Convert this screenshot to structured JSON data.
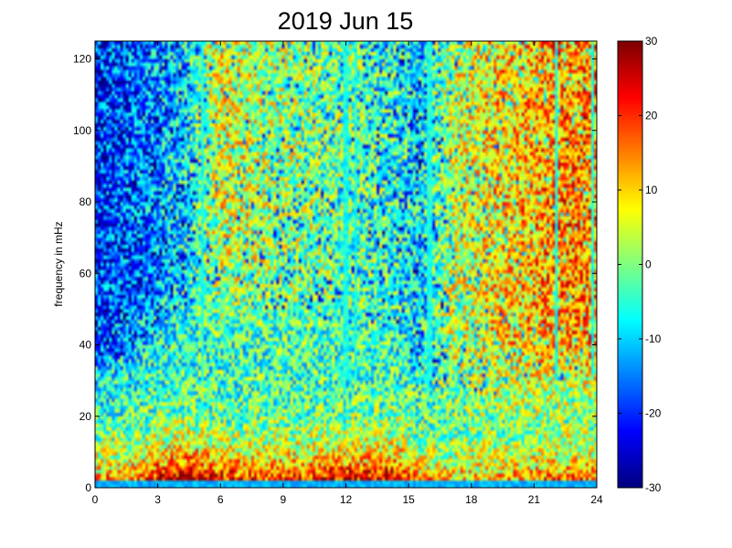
{
  "chart_data": {
    "type": "heatmap",
    "title": "2019 Jun 15",
    "xlabel": "",
    "ylabel": "frequency in mHz",
    "xlim": [
      0,
      24
    ],
    "ylim": [
      0,
      125
    ],
    "x_ticks": [
      "0",
      "3",
      "6",
      "9",
      "12",
      "15",
      "18",
      "21",
      "24"
    ],
    "y_ticks": [
      "0",
      "20",
      "40",
      "60",
      "80",
      "100",
      "120"
    ],
    "colorbar": {
      "range": [
        -30,
        30
      ],
      "ticks": [
        "30",
        "20",
        "10",
        "0",
        "-10",
        "-20",
        "-30"
      ],
      "colormap": "jet"
    },
    "grid": false,
    "power_profile": {
      "hours": [
        0,
        2,
        3,
        4.5,
        6,
        8,
        10,
        12,
        14.5,
        15.5,
        17,
        19,
        21,
        22.5,
        24
      ],
      "low_freq_level": [
        12,
        13,
        22,
        28,
        20,
        18,
        20,
        22,
        24,
        12,
        10,
        10,
        14,
        16,
        14
      ],
      "mid_band_extent_mHz": [
        34,
        38,
        46,
        50,
        52,
        50,
        48,
        46,
        44,
        30,
        28,
        26,
        28,
        30,
        30
      ],
      "high_freq_level": [
        -18,
        -15,
        -12,
        -6,
        8,
        4,
        2,
        0,
        -4,
        -8,
        4,
        10,
        14,
        16,
        16
      ]
    },
    "vertical_streaks_hours": [
      5.1,
      12.0,
      12.5,
      16.0,
      22.1,
      23.8
    ]
  }
}
